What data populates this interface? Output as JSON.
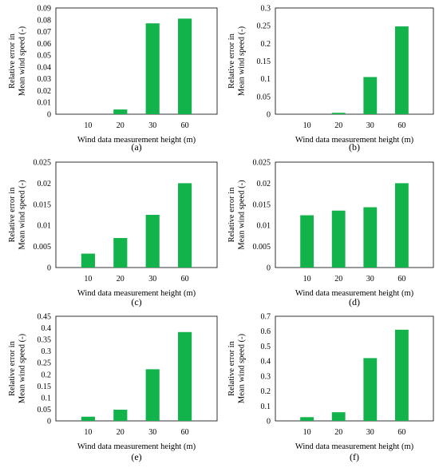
{
  "figure": {
    "bar_color": "#13b34b",
    "axis_color": "#000000",
    "xlabel": "Wind data measurement height (m)",
    "ylabel_lines": [
      "Relative error in",
      "Mean wind speed (-)"
    ]
  },
  "chart_data": [
    {
      "type": "bar",
      "panel_label": "(a)",
      "categories": [
        "10",
        "20",
        "30",
        "60"
      ],
      "values": [
        0,
        0.004,
        0.077,
        0.081
      ],
      "yticks": [
        "0",
        "0.01",
        "0.02",
        "0.03",
        "0.04",
        "0.05",
        "0.06",
        "0.07",
        "0.08",
        "0.09"
      ],
      "ylim": [
        0,
        0.09
      ],
      "xlabel": "Wind data measurement height (m)",
      "ylabel": "Relative error in Mean wind speed (-)"
    },
    {
      "type": "bar",
      "panel_label": "(b)",
      "categories": [
        "10",
        "20",
        "30",
        "60"
      ],
      "values": [
        0,
        0.004,
        0.105,
        0.248
      ],
      "yticks": [
        "0",
        "0.05",
        "0.1",
        "0.15",
        "0.2",
        "0.25",
        "0.3"
      ],
      "ylim": [
        0,
        0.3
      ],
      "xlabel": "Wind data measurement height (m)",
      "ylabel": "Relative error in Mean wind speed (-)"
    },
    {
      "type": "bar",
      "panel_label": "(c)",
      "categories": [
        "10",
        "20",
        "30",
        "60"
      ],
      "values": [
        0.0033,
        0.007,
        0.0125,
        0.02
      ],
      "yticks": [
        "0",
        "0.005",
        "0.01",
        "0.015",
        "0.02",
        "0.025"
      ],
      "ylim": [
        0,
        0.025
      ],
      "xlabel": "Wind data measurement height (m)",
      "ylabel": "Relative error in Mean wind speed (-)"
    },
    {
      "type": "bar",
      "panel_label": "(d)",
      "categories": [
        "10",
        "20",
        "30",
        "60"
      ],
      "values": [
        0.0124,
        0.0135,
        0.0143,
        0.02
      ],
      "yticks": [
        "0",
        "0.005",
        "0.01",
        "0.015",
        "0.02",
        "0.025"
      ],
      "ylim": [
        0,
        0.025
      ],
      "xlabel": "Wind data measurement height (m)",
      "ylabel": "Relative error in Mean wind speed (-)"
    },
    {
      "type": "bar",
      "panel_label": "(e)",
      "categories": [
        "10",
        "20",
        "30",
        "60"
      ],
      "values": [
        0.018,
        0.048,
        0.222,
        0.382
      ],
      "yticks": [
        "0",
        "0.05",
        "0.1",
        "0.15",
        "0.2",
        "0.25",
        "0.3",
        "0.35",
        "0.4",
        "0.45"
      ],
      "ylim": [
        0,
        0.45
      ],
      "xlabel": "Wind data measurement height (m)",
      "ylabel": "Relative error in Mean wind speed (-)"
    },
    {
      "type": "bar",
      "panel_label": "(f)",
      "categories": [
        "10",
        "20",
        "30",
        "60"
      ],
      "values": [
        0.025,
        0.058,
        0.42,
        0.61
      ],
      "yticks": [
        "0",
        "0.1",
        "0.2",
        "0.3",
        "0.4",
        "0.5",
        "0.6",
        "0.7"
      ],
      "ylim": [
        0,
        0.7
      ],
      "xlabel": "Wind data measurement height (m)",
      "ylabel": "Relative error in Mean wind speed (-)"
    }
  ]
}
